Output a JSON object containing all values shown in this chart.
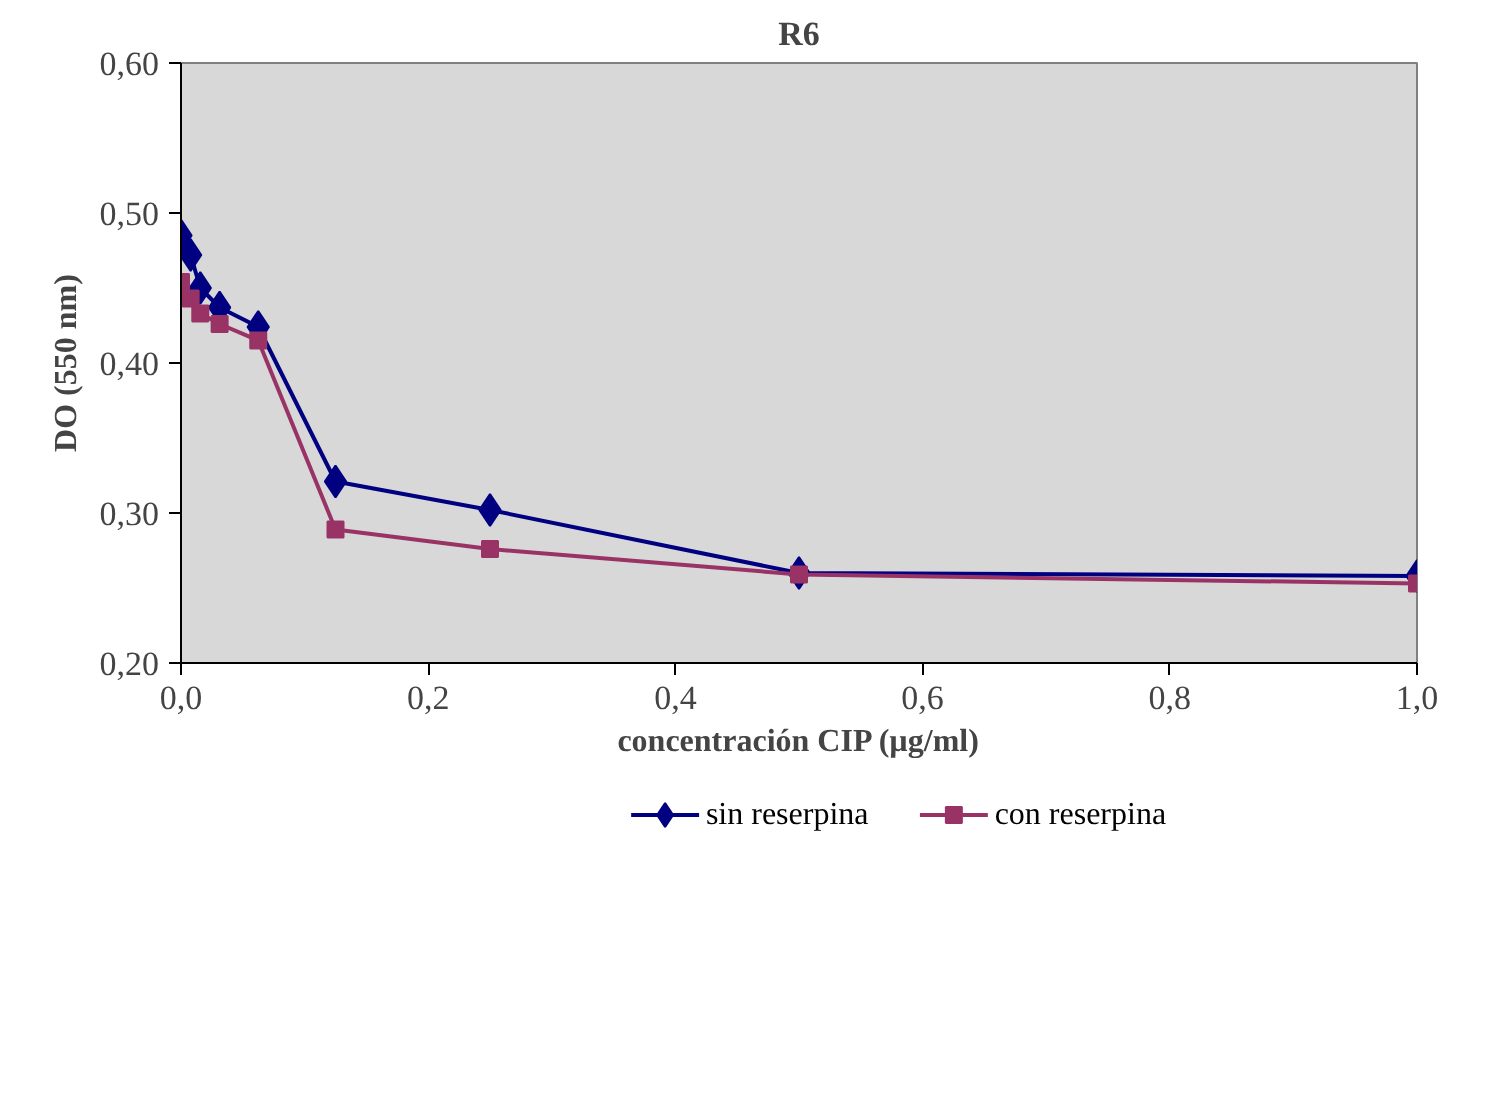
{
  "chart_data": {
    "type": "line",
    "title": "R6",
    "xlabel": "concentración CIP (µg/ml)",
    "ylabel": "DO (550 nm)",
    "x": [
      0,
      0.0078,
      0.0156,
      0.03125,
      0.0625,
      0.125,
      0.25,
      0.5,
      1
    ],
    "xlim": [
      0,
      1
    ],
    "xticks": [
      {
        "value": 0,
        "label": "0,0"
      },
      {
        "value": 0.2,
        "label": "0,2"
      },
      {
        "value": 0.4,
        "label": "0,4"
      },
      {
        "value": 0.6,
        "label": "0,6"
      },
      {
        "value": 0.8,
        "label": "0,8"
      },
      {
        "value": 1,
        "label": "1,0"
      }
    ],
    "ylim": [
      0.2,
      0.6
    ],
    "yticks": [
      {
        "value": 0.2,
        "label": "0,20"
      },
      {
        "value": 0.3,
        "label": "0,30"
      },
      {
        "value": 0.4,
        "label": "0,40"
      },
      {
        "value": 0.5,
        "label": "0,50"
      },
      {
        "value": 0.6,
        "label": "0,60"
      }
    ],
    "grid": false,
    "legend": "bottom",
    "series": [
      {
        "name": "sin reserpina",
        "color": "#000080",
        "marker": "diamond",
        "values": [
          0.485,
          0.472,
          0.45,
          0.437,
          0.424,
          0.321,
          0.302,
          0.26,
          0.258
        ]
      },
      {
        "name": "con reserpina",
        "color": "#993366",
        "marker": "square",
        "values": [
          0.454,
          0.443,
          0.433,
          0.426,
          0.415,
          0.289,
          0.276,
          0.259,
          0.253
        ]
      }
    ]
  }
}
